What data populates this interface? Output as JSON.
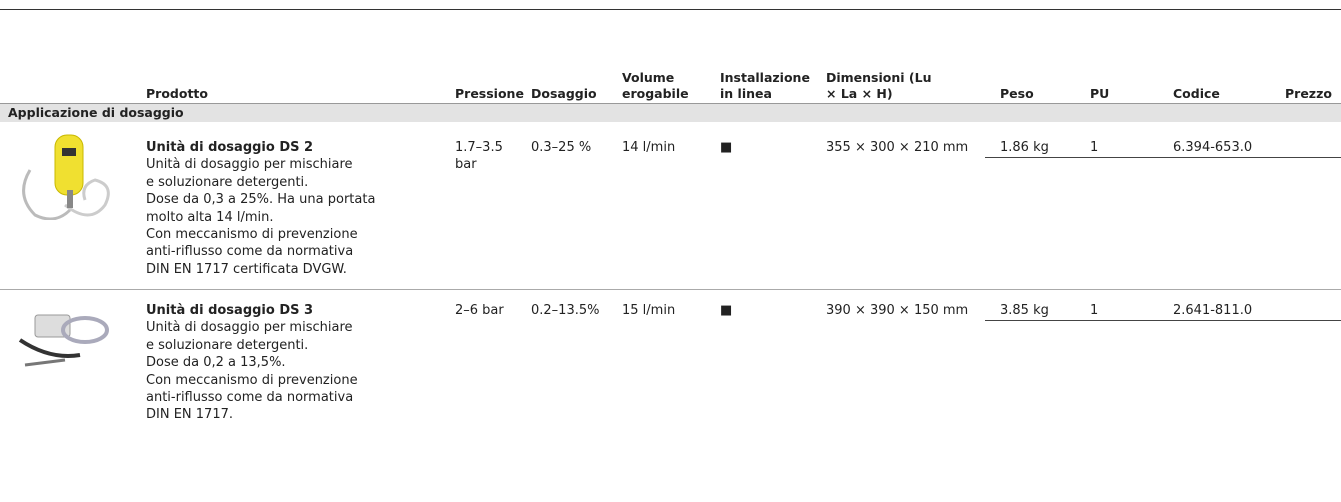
{
  "header": {
    "columns": [
      "Prodotto",
      "Pressione",
      "Dosaggio",
      "Volume erogabile",
      "Installazione in linea",
      "Dimensioni (Lu × La × H)",
      "Peso",
      "PU",
      "Codice",
      "Prezzo"
    ]
  },
  "section": "Applicazione di dosaggio",
  "products": [
    {
      "name": "Unità di dosaggio DS 2",
      "description": [
        "Unità di dosaggio per mischiare",
        "e soluzionare detergenti.",
        "Dose da 0,3 a 25%. Ha una portata",
        "molto alta 14 l/min.",
        "Con meccanismo di prevenzione",
        "anti-riflusso come da normativa",
        "DIN EN 1717 certificata DVGW."
      ],
      "cells": [
        "1.7–3.5 bar",
        "0.3–25 %",
        "14 l/min",
        "■",
        "355 × 300 × 210 mm",
        "1.86 kg",
        "1",
        "6.394-653.0"
      ]
    },
    {
      "name": "Unità di dosaggio DS 3",
      "description": [
        "Unità di dosaggio per mischiare",
        "e soluzionare detergenti.",
        "Dose da 0,2 a 13,5%.",
        "Con meccanismo di prevenzione",
        "anti-riflusso come da normativa",
        "DIN EN 1717."
      ],
      "cells": [
        "2–6 bar",
        "0.2–13.5%",
        "15 l/min",
        "■",
        "390 × 390 × 150 mm",
        "3.85 kg",
        "1",
        "2.641-811.0"
      ]
    }
  ]
}
